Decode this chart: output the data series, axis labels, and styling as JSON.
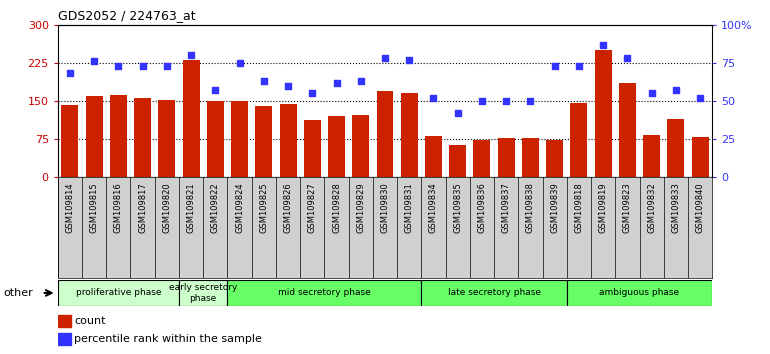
{
  "title": "GDS2052 / 224763_at",
  "samples": [
    "GSM109814",
    "GSM109815",
    "GSM109816",
    "GSM109817",
    "GSM109820",
    "GSM109821",
    "GSM109822",
    "GSM109824",
    "GSM109825",
    "GSM109826",
    "GSM109827",
    "GSM109828",
    "GSM109829",
    "GSM109830",
    "GSM109831",
    "GSM109834",
    "GSM109835",
    "GSM109836",
    "GSM109837",
    "GSM109838",
    "GSM109839",
    "GSM109818",
    "GSM109819",
    "GSM109823",
    "GSM109832",
    "GSM109833",
    "GSM109840"
  ],
  "counts": [
    142,
    160,
    162,
    155,
    151,
    230,
    150,
    150,
    140,
    144,
    112,
    120,
    122,
    170,
    165,
    80,
    63,
    72,
    76,
    76,
    72,
    145,
    250,
    185,
    83,
    115,
    78
  ],
  "percentiles": [
    68,
    76,
    73,
    73,
    73,
    80,
    57,
    75,
    63,
    60,
    55,
    62,
    63,
    78,
    77,
    52,
    42,
    50,
    50,
    50,
    73,
    73,
    87,
    78,
    55,
    57,
    52
  ],
  "phases": [
    {
      "label": "proliferative phase",
      "start": 0,
      "end": 5,
      "color": "#ccffcc"
    },
    {
      "label": "early secretory\nphase",
      "start": 5,
      "end": 7,
      "color": "#ccffcc"
    },
    {
      "label": "mid secretory phase",
      "start": 7,
      "end": 15,
      "color": "#66ff66"
    },
    {
      "label": "late secretory phase",
      "start": 15,
      "end": 21,
      "color": "#66ff66"
    },
    {
      "label": "ambiguous phase",
      "start": 21,
      "end": 27,
      "color": "#66ff66"
    }
  ],
  "bar_color": "#cc2200",
  "dot_color": "#3333ff",
  "ylim_left": [
    0,
    300
  ],
  "ylim_right": [
    0,
    100
  ],
  "yticks_left": [
    0,
    75,
    150,
    225,
    300
  ],
  "yticks_right": [
    0,
    25,
    50,
    75,
    100
  ],
  "left_color": "#cc0000",
  "right_color": "#3333ff",
  "plot_bg": "#ffffff",
  "xtick_bg": "#d0d0d0"
}
